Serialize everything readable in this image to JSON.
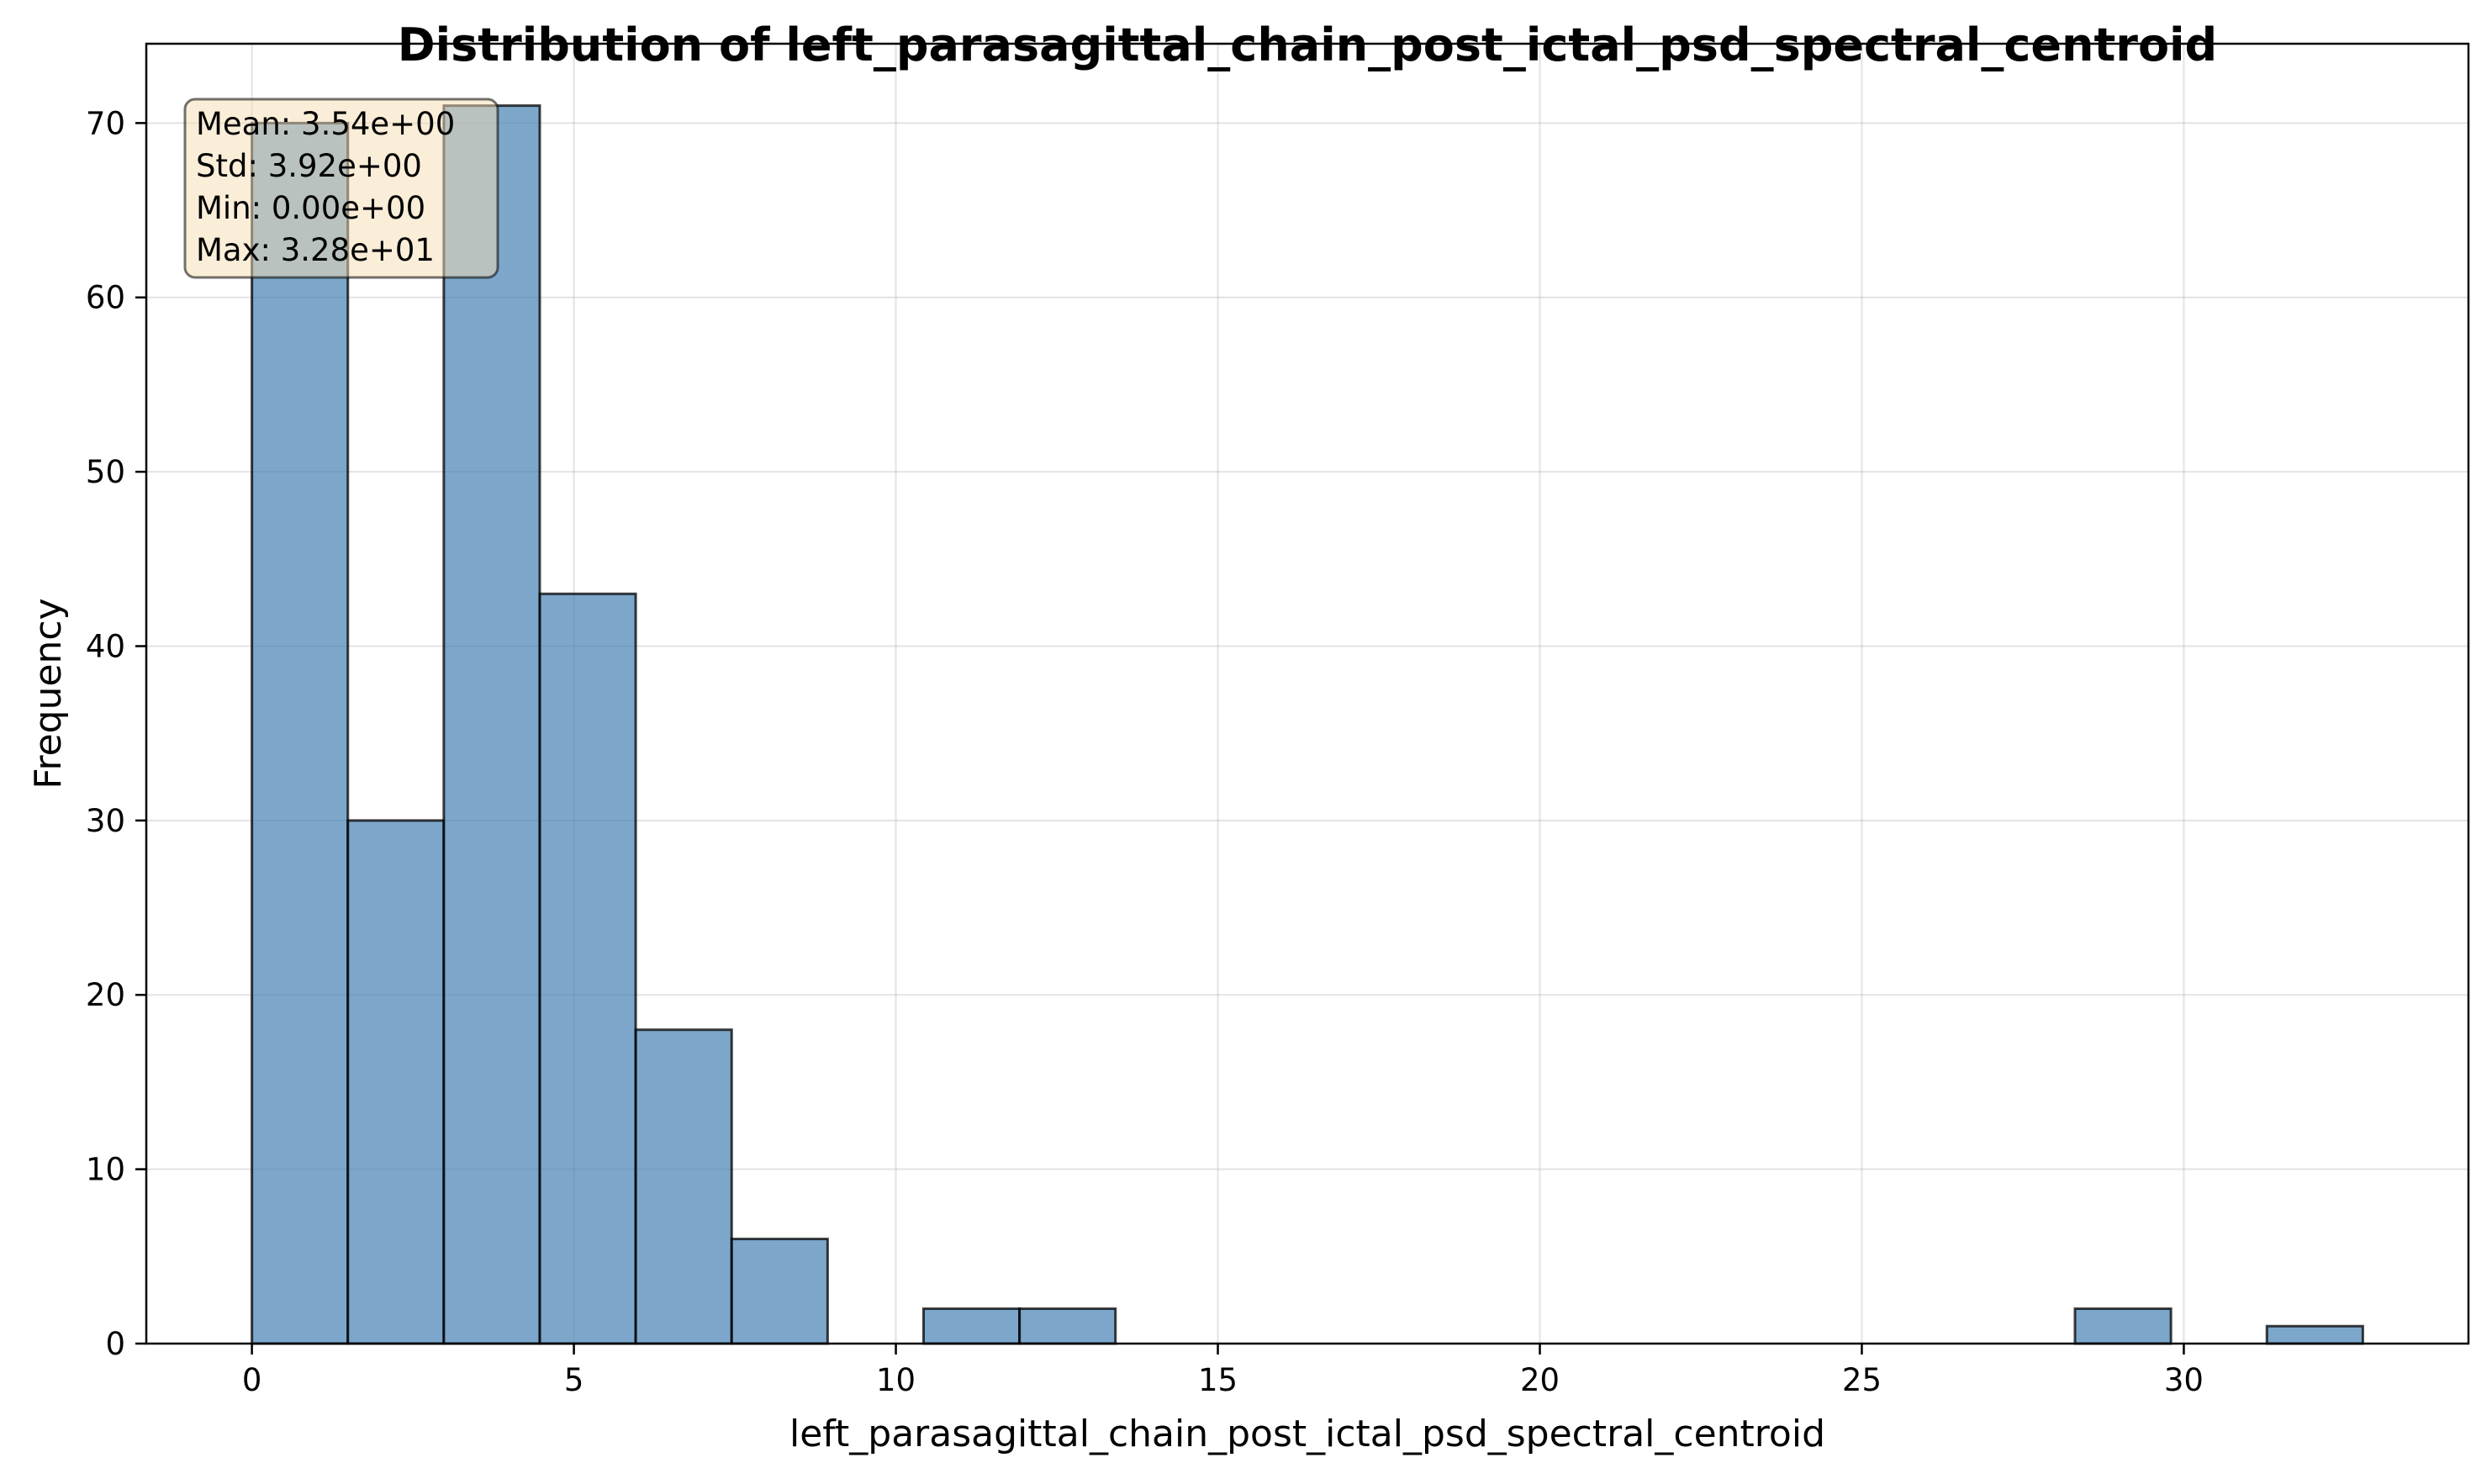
{
  "chart_data": {
    "type": "bar",
    "title": "Distribution of left_parasagittal_chain_post_ictal_psd_spectral_centroid",
    "xlabel": "left_parasagittal_chain_post_ictal_psd_spectral_centroid",
    "ylabel": "Frequency",
    "xlim": [
      -1.64,
      34.42
    ],
    "ylim": [
      0,
      74.55
    ],
    "x_ticks": [
      0,
      5,
      10,
      15,
      20,
      25,
      30
    ],
    "y_ticks": [
      0,
      10,
      20,
      30,
      40,
      50,
      60,
      70
    ],
    "bin_edges": [
      0,
      1.49,
      2.98,
      4.47,
      5.96,
      7.45,
      8.94,
      10.43,
      11.92,
      13.41,
      14.9,
      16.39,
      17.88,
      19.37,
      20.86,
      22.35,
      23.84,
      25.33,
      26.82,
      28.31,
      29.8,
      31.29,
      32.78
    ],
    "values": [
      70,
      30,
      71,
      43,
      18,
      6,
      0,
      2,
      2,
      0,
      0,
      0,
      0,
      0,
      0,
      0,
      0,
      0,
      0,
      2,
      0,
      1
    ],
    "bar_color": "#4682b4",
    "grid": true,
    "stats_box": {
      "placement": "top-left",
      "lines": [
        "Mean: 3.54e+00",
        "Std: 3.92e+00",
        "Min: 0.00e+00",
        "Max: 3.28e+01"
      ],
      "background": "#f5deb3"
    }
  }
}
